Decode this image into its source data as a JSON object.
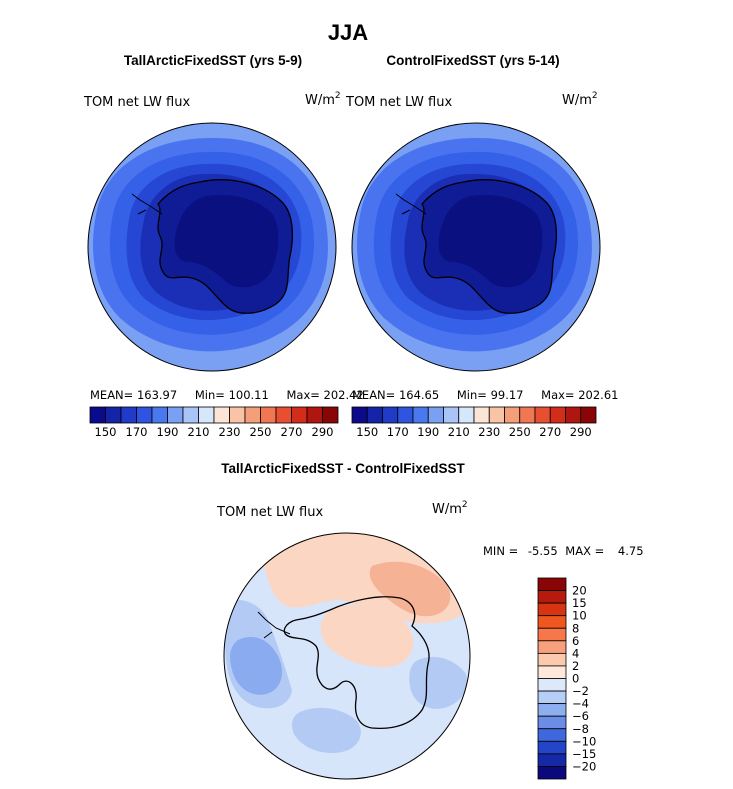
{
  "figure_title": "JJA",
  "chart_data": [
    {
      "type": "heatmap",
      "title": "TallArcticFixedSST (yrs 5-9)",
      "variable_label": "TOM net LW flux",
      "units_base": "W/m",
      "units_exp": "2",
      "stats": {
        "mean_label": "MEAN=",
        "mean": "163.97",
        "min_label": "Min=",
        "min": "100.11",
        "max_label": "Max=",
        "max": "202.42"
      },
      "colorbar_levels": [
        140,
        150,
        160,
        170,
        180,
        190,
        200,
        210,
        220,
        230,
        240,
        250,
        260,
        270,
        280,
        290,
        300
      ],
      "colorbar_labels": [
        "150",
        "170",
        "190",
        "210",
        "230",
        "250",
        "270",
        "290"
      ],
      "colorbar_colors": [
        "#0a0a8a",
        "#1423a8",
        "#1f3bc8",
        "#2f55e0",
        "#4a78ee",
        "#7aa0f4",
        "#a9c4f7",
        "#d6e6fb",
        "#fce4d6",
        "#f9c3a6",
        "#f59f7a",
        "#f07752",
        "#e84f30",
        "#d22d1a",
        "#b0150f",
        "#8a0606"
      ],
      "map_colors": [
        "#4a73f0",
        "#3560e8",
        "#2646d4",
        "#1a2fb6",
        "#101c96",
        "#0a1080",
        "#7aa0f4"
      ]
    },
    {
      "type": "heatmap",
      "title": "ControlFixedSST (yrs 5-14)",
      "variable_label": "TOM net LW flux",
      "units_base": "W/m",
      "units_exp": "2",
      "stats": {
        "mean_label": "MEAN=",
        "mean": "164.65",
        "min_label": "Min=",
        "min": "99.17",
        "max_label": "Max=",
        "max": "202.61"
      },
      "colorbar_levels": [
        140,
        150,
        160,
        170,
        180,
        190,
        200,
        210,
        220,
        230,
        240,
        250,
        260,
        270,
        280,
        290,
        300
      ],
      "colorbar_labels": [
        "150",
        "170",
        "190",
        "210",
        "230",
        "250",
        "270",
        "290"
      ],
      "colorbar_colors": [
        "#0a0a8a",
        "#1423a8",
        "#1f3bc8",
        "#2f55e0",
        "#4a78ee",
        "#7aa0f4",
        "#a9c4f7",
        "#d6e6fb",
        "#fce4d6",
        "#f9c3a6",
        "#f59f7a",
        "#f07752",
        "#e84f30",
        "#d22d1a",
        "#b0150f",
        "#8a0606"
      ],
      "map_colors": [
        "#4a73f0",
        "#3560e8",
        "#2646d4",
        "#1a2fb6",
        "#101c96",
        "#0a1080",
        "#7aa0f4"
      ]
    },
    {
      "type": "heatmap",
      "title": "TallArcticFixedSST - ControlFixedSST",
      "variable_label": "TOM net LW flux",
      "units_base": "W/m",
      "units_exp": "2",
      "stats": {
        "min_label": "MIN =",
        "min": "-5.55",
        "max_label": "MAX =",
        "max": "4.75"
      },
      "colorbar_labels": [
        "20",
        "15",
        "10",
        "8",
        "6",
        "4",
        "2",
        "0",
        "−2",
        "−4",
        "−6",
        "−8",
        "−10",
        "−15",
        "−20"
      ],
      "colorbar_colors": [
        "#8a0606",
        "#b51a0c",
        "#d93412",
        "#f0561f",
        "#f5774a",
        "#f8a07d",
        "#fbc9ad",
        "#fde9dc",
        "#dde9fb",
        "#b6cdf6",
        "#8eafef",
        "#6a8ee8",
        "#3f67de",
        "#2445c8",
        "#1628a6",
        "#0a0a7d"
      ],
      "map_colors": {
        "background": "#d7e5fa",
        "warm": "#fbd7c3",
        "warm_strong": "#f6b294",
        "cool": "#b3caf5",
        "cool_strong": "#8aabef"
      }
    }
  ]
}
